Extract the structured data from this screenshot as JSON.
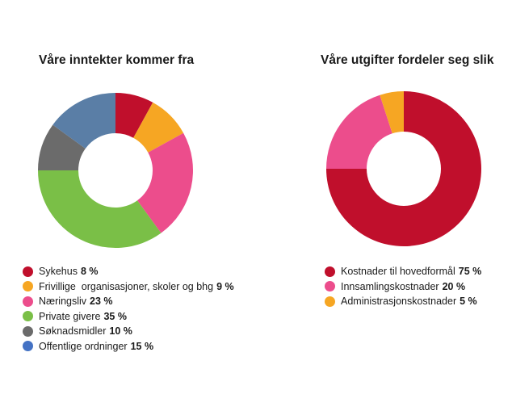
{
  "chart_data": [
    {
      "type": "pie",
      "donut": true,
      "title": "Våre inntekter kommer fra",
      "legend_position": "bottom",
      "slices": [
        {
          "label": "Sykehus",
          "value": 8,
          "value_label": "8 %",
          "color": "#c00f2c"
        },
        {
          "label": "Frivillige  organisasjoner, skoler og bhg",
          "value": 9,
          "value_label": "9 %",
          "color": "#f6a623"
        },
        {
          "label": "Næringsliv",
          "value": 23,
          "value_label": "23 %",
          "color": "#ec4d8c"
        },
        {
          "label": "Private givere",
          "value": 35,
          "value_label": "35 %",
          "color": "#7abf47"
        },
        {
          "label": "Søknadsmidler",
          "value": 10,
          "value_label": "10 %",
          "color": "#6b6b6b"
        },
        {
          "label": "Offentlige ordninger",
          "value": 15,
          "value_label": "15 %",
          "color": "#5a7ea6"
        }
      ],
      "legend_swatch_overrides": {
        "Offentlige ordninger": "#4472c4"
      }
    },
    {
      "type": "pie",
      "donut": true,
      "title": "Våre utgifter fordeler seg slik",
      "legend_position": "bottom",
      "slices": [
        {
          "label": "Kostnader til hovedformål",
          "value": 75,
          "value_label": "75 %",
          "color": "#c00f2c"
        },
        {
          "label": "Innsamlingskostnader",
          "value": 20,
          "value_label": "20 %",
          "color": "#ec4d8c"
        },
        {
          "label": "Administrasjonskostnader",
          "value": 5,
          "value_label": "5 %",
          "color": "#f6a623"
        }
      ]
    }
  ]
}
